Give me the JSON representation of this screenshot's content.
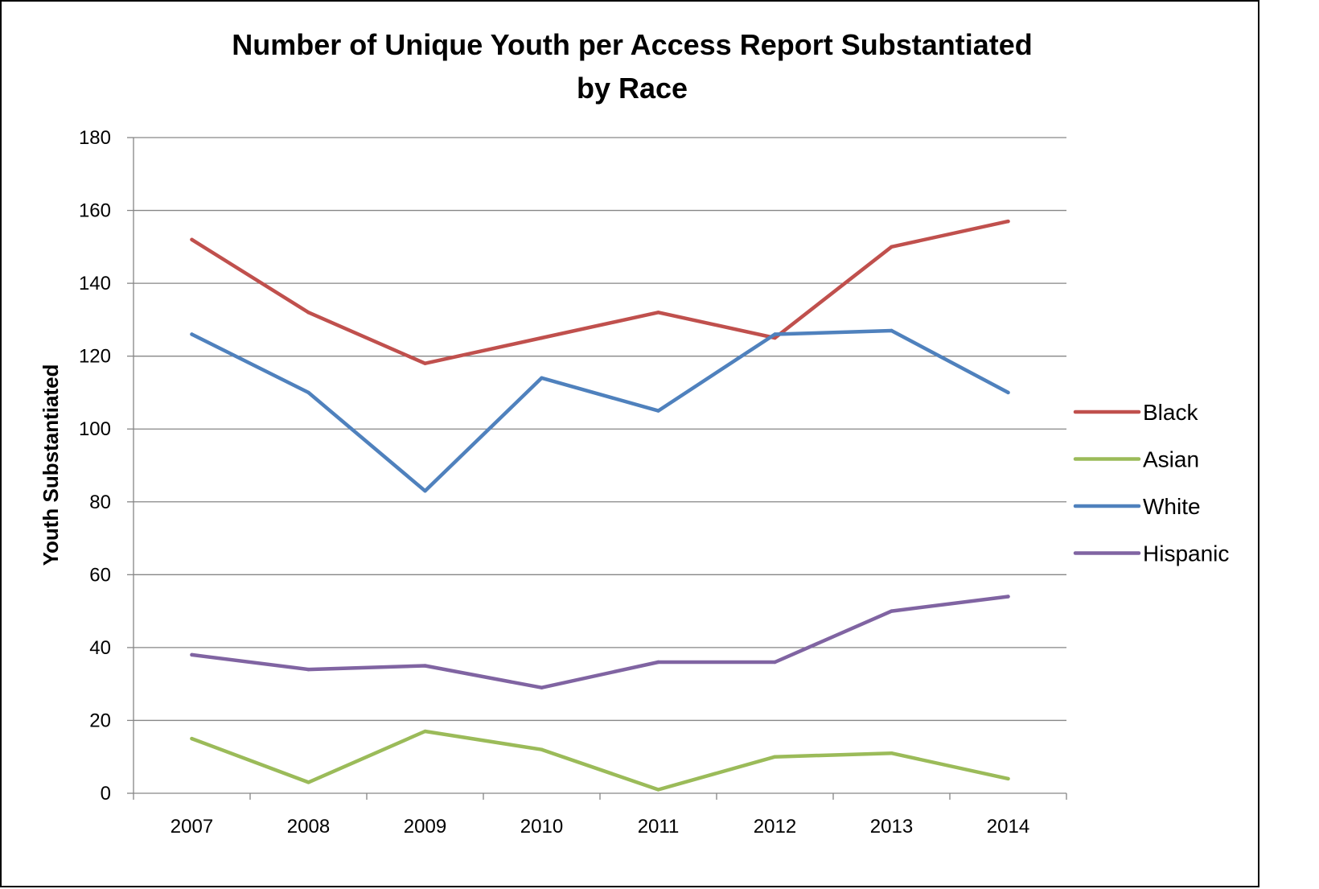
{
  "chart_data": {
    "type": "line",
    "title_line1": "Number of Unique Youth per Access Report Substantiated",
    "title_line2": "by Race",
    "ylabel": "Youth Substantiated",
    "xlabel": "",
    "categories": [
      "2007",
      "2008",
      "2009",
      "2010",
      "2011",
      "2012",
      "2013",
      "2014"
    ],
    "ylim": [
      0,
      180
    ],
    "yticks": [
      "0",
      "20",
      "40",
      "60",
      "80",
      "100",
      "120",
      "140",
      "160",
      "180"
    ],
    "grid": true,
    "legend_position": "right",
    "series": [
      {
        "name": "Black",
        "color": "#c0504d",
        "values": [
          152,
          132,
          118,
          125,
          132,
          125,
          150,
          157
        ]
      },
      {
        "name": "Asian",
        "color": "#9bbb59",
        "values": [
          15,
          3,
          17,
          12,
          1,
          10,
          11,
          4
        ]
      },
      {
        "name": "White",
        "color": "#4f81bd",
        "values": [
          126,
          110,
          83,
          114,
          105,
          126,
          127,
          110
        ]
      },
      {
        "name": "Hispanic",
        "color": "#8064a2",
        "values": [
          38,
          34,
          35,
          29,
          36,
          36,
          50,
          54
        ]
      }
    ]
  }
}
